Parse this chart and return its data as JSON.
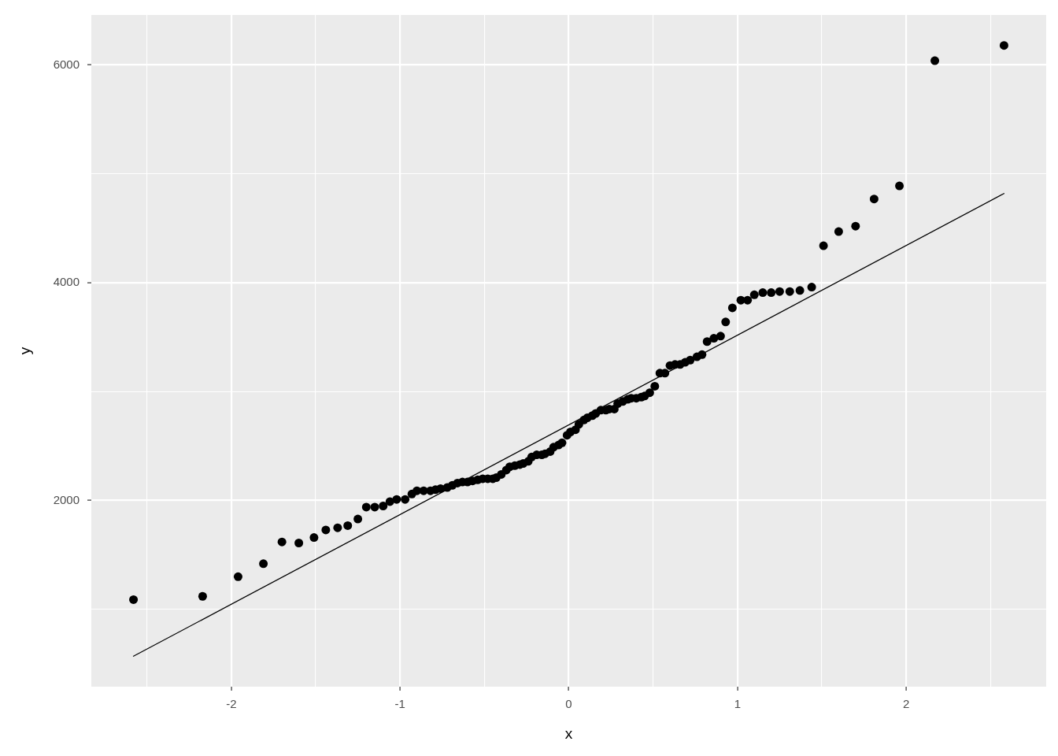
{
  "chart_data": {
    "type": "scatter",
    "xlabel": "x",
    "ylabel": "y",
    "xlim": [
      -2.83,
      2.83
    ],
    "ylim": [
      290,
      6460
    ],
    "xticks": [
      {
        "value": -2.5,
        "label": null
      },
      -2,
      {
        "value": -1.5,
        "label": null
      },
      -1,
      {
        "value": -0.5,
        "label": null
      },
      0,
      {
        "value": 0.5,
        "label": null
      },
      1,
      {
        "value": 1.5,
        "label": null
      },
      2,
      {
        "value": 2.5,
        "label": null
      }
    ],
    "yticks": [
      {
        "value": 1000,
        "label": null
      },
      2000,
      {
        "value": 3000,
        "label": null
      },
      4000,
      {
        "value": 5000,
        "label": null
      },
      6000
    ],
    "grid": true,
    "series": [
      {
        "color": "#000000",
        "marker": "circle",
        "x": [
          -2.58,
          -2.17,
          -1.96,
          -1.81,
          -1.7,
          -1.6,
          -1.51,
          -1.44,
          -1.37,
          -1.31,
          -1.25,
          -1.2,
          -1.15,
          -1.1,
          -1.06,
          -1.02,
          -0.97,
          -0.93,
          -0.9,
          -0.86,
          -0.82,
          -0.79,
          -0.76,
          -0.72,
          -0.69,
          -0.66,
          -0.63,
          -0.6,
          -0.57,
          -0.54,
          -0.51,
          -0.48,
          -0.45,
          -0.43,
          -0.4,
          -0.37,
          -0.35,
          -0.32,
          -0.29,
          -0.27,
          -0.24,
          -0.22,
          -0.19,
          -0.16,
          -0.14,
          -0.11,
          -0.09,
          -0.06,
          -0.04,
          -0.01,
          0.01,
          0.04,
          0.06,
          0.09,
          0.11,
          0.14,
          0.16,
          0.19,
          0.22,
          0.24,
          0.27,
          0.29,
          0.32,
          0.35,
          0.37,
          0.4,
          0.43,
          0.45,
          0.48,
          0.51,
          0.54,
          0.57,
          0.6,
          0.63,
          0.66,
          0.69,
          0.72,
          0.76,
          0.79,
          0.82,
          0.86,
          0.9,
          0.93,
          0.97,
          1.02,
          1.06,
          1.1,
          1.15,
          1.2,
          1.25,
          1.31,
          1.37,
          1.44,
          1.51,
          1.6,
          1.7,
          1.81,
          1.96,
          2.17,
          2.58
        ],
        "values": [
          1090,
          1120,
          1300,
          1420,
          1620,
          1610,
          1660,
          1730,
          1750,
          1770,
          1830,
          1940,
          1940,
          1950,
          1990,
          2010,
          2010,
          2060,
          2090,
          2090,
          2090,
          2100,
          2110,
          2120,
          2140,
          2160,
          2170,
          2170,
          2180,
          2190,
          2200,
          2200,
          2200,
          2210,
          2240,
          2280,
          2310,
          2320,
          2330,
          2340,
          2360,
          2400,
          2420,
          2420,
          2430,
          2450,
          2490,
          2510,
          2530,
          2600,
          2630,
          2650,
          2700,
          2740,
          2760,
          2780,
          2800,
          2830,
          2830,
          2840,
          2840,
          2890,
          2910,
          2930,
          2940,
          2940,
          2950,
          2960,
          2990,
          3050,
          3170,
          3170,
          3240,
          3250,
          3250,
          3270,
          3290,
          3320,
          3340,
          3460,
          3490,
          3510,
          3640,
          3770,
          3840,
          3840,
          3890,
          3910,
          3910,
          3920,
          3920,
          3930,
          3960,
          4340,
          4470,
          4520,
          4770,
          4890,
          6040,
          6180
        ]
      },
      {
        "type": "line",
        "color": "#000000",
        "line_style": "solid",
        "x": [
          -2.58,
          2.58
        ],
        "values": [
          570,
          4820
        ]
      }
    ]
  }
}
